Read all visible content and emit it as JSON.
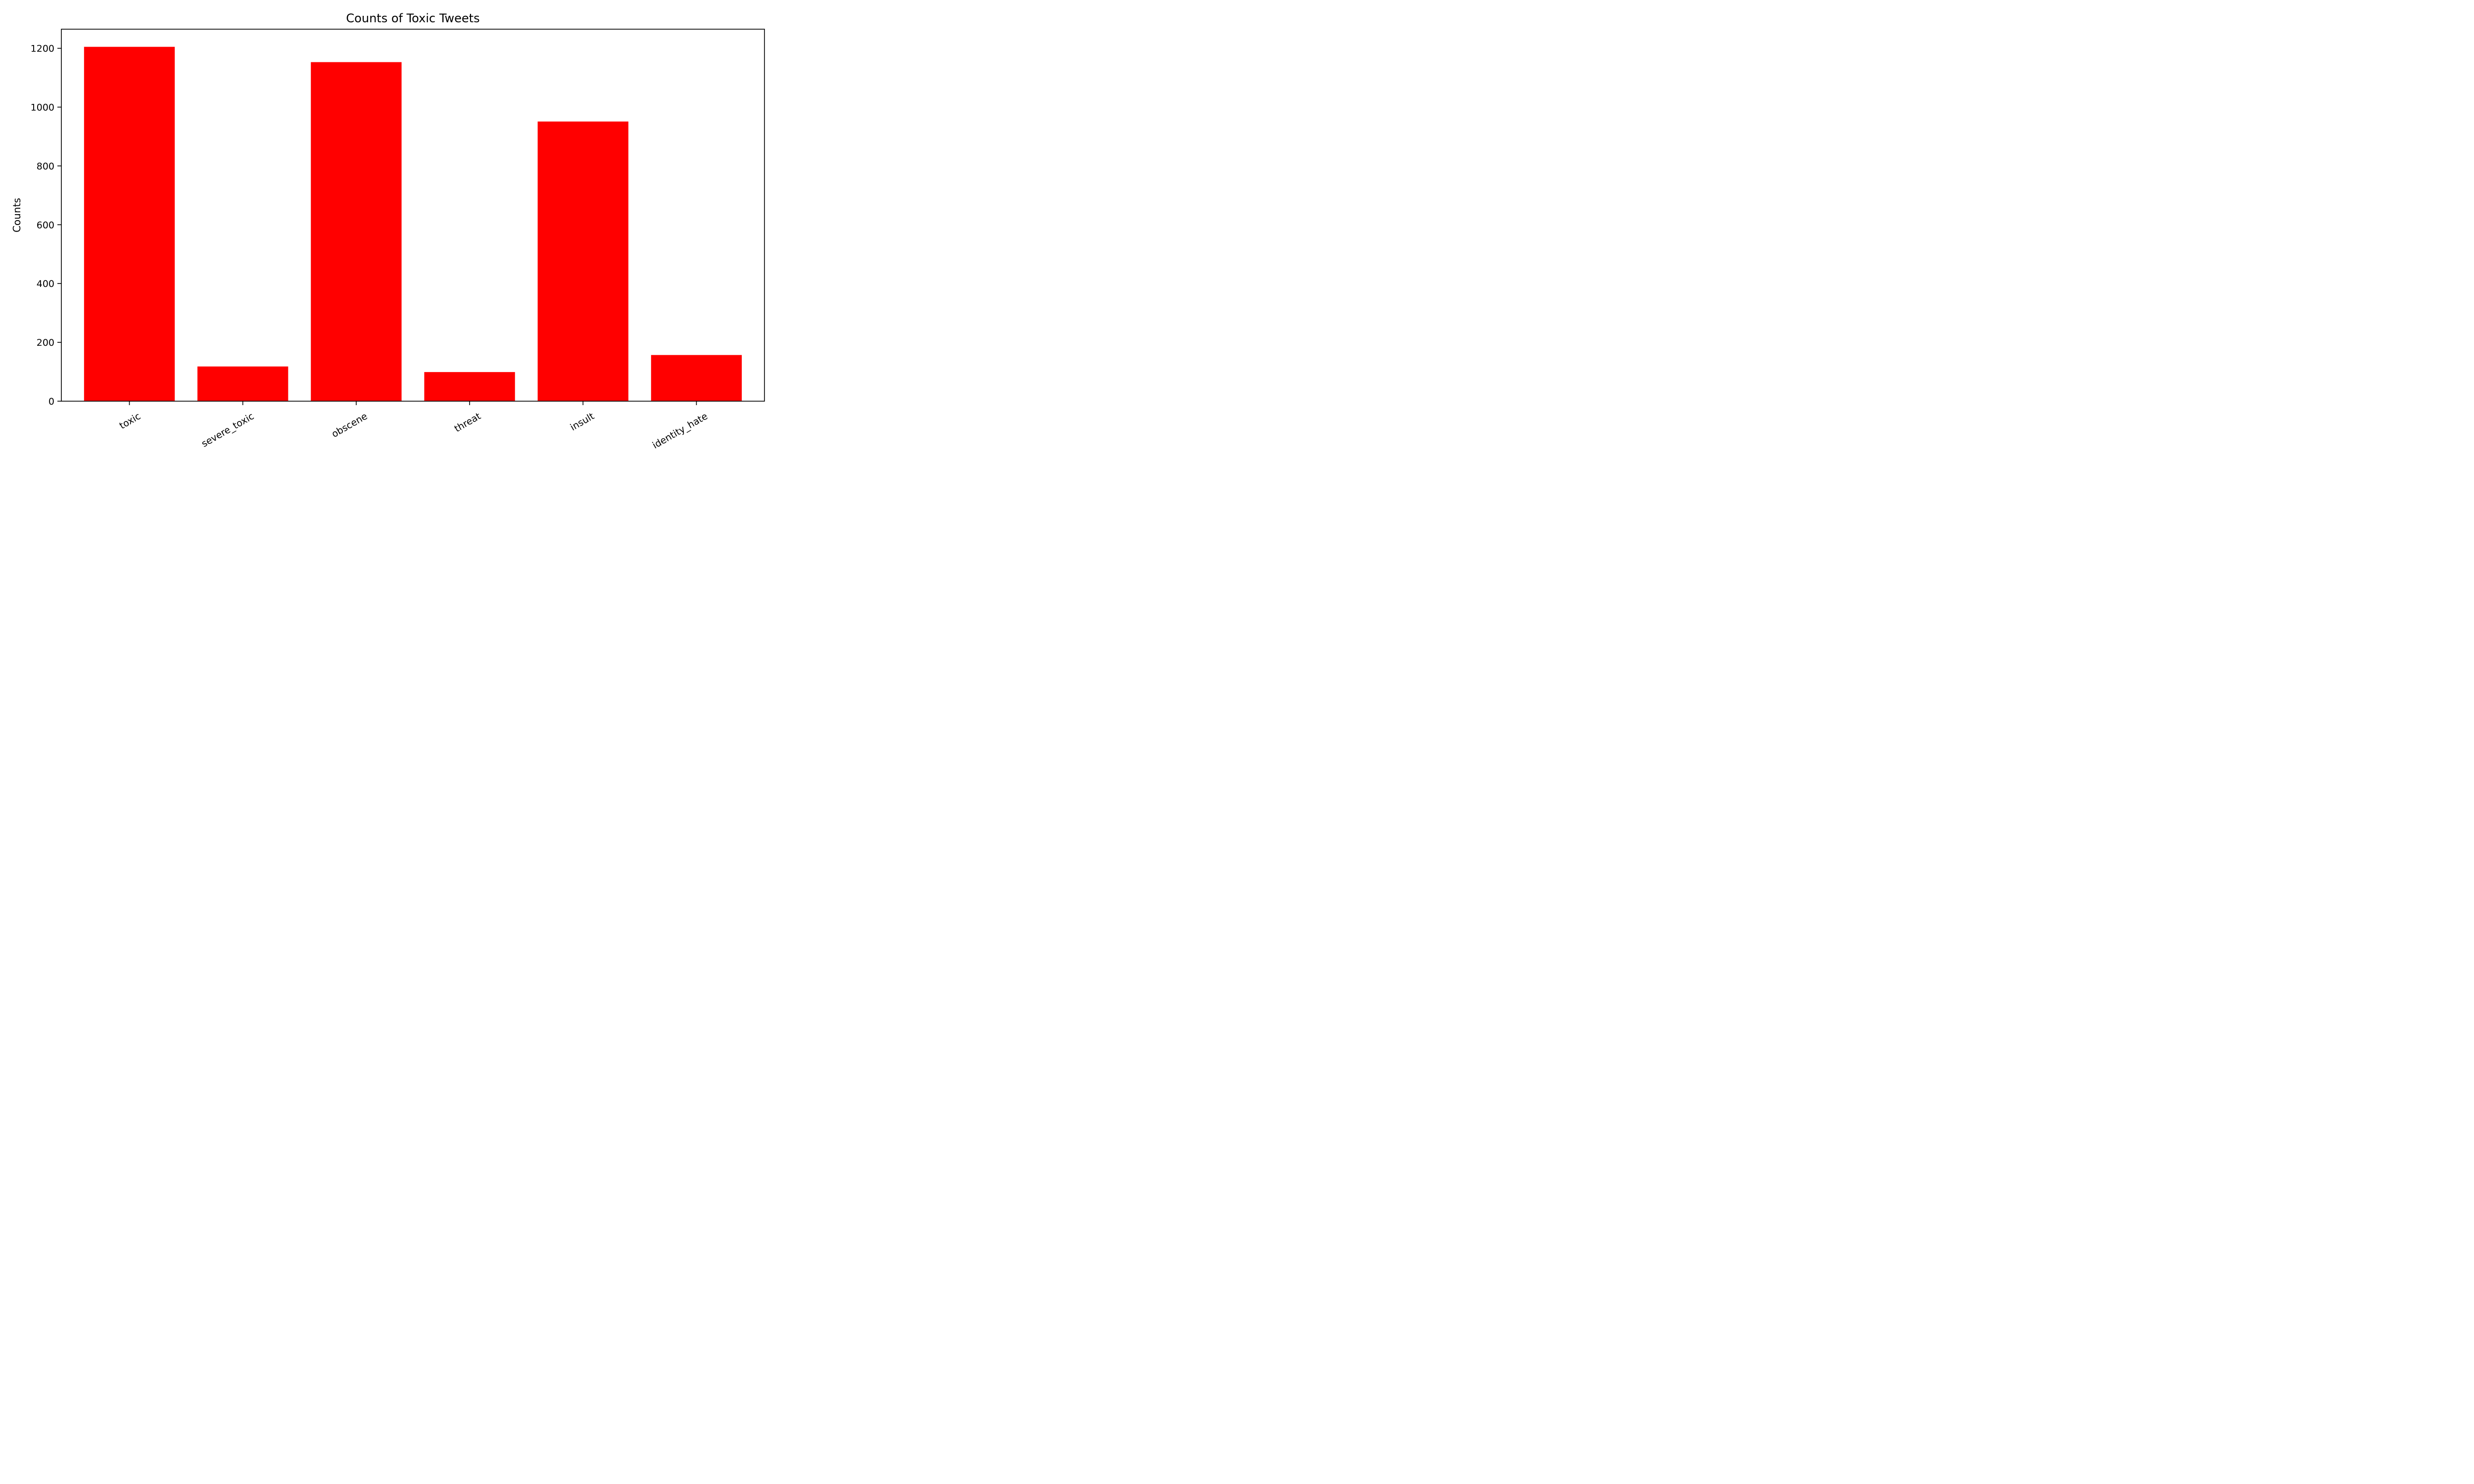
{
  "chart_data": {
    "type": "bar",
    "title": "Counts of Toxic Tweets",
    "xlabel": "",
    "ylabel": "Counts",
    "categories": [
      "toxic",
      "severe_toxic",
      "obscene",
      "threat",
      "insult",
      "identity_hate"
    ],
    "values": [
      1205,
      118,
      1153,
      99,
      951,
      157
    ],
    "ylim": [
      0,
      1265
    ],
    "yticks": [
      0,
      200,
      400,
      600,
      800,
      1000,
      1200
    ],
    "grid": false,
    "x_tick_rotation": "30deg",
    "bar_color": "#ff0000"
  }
}
